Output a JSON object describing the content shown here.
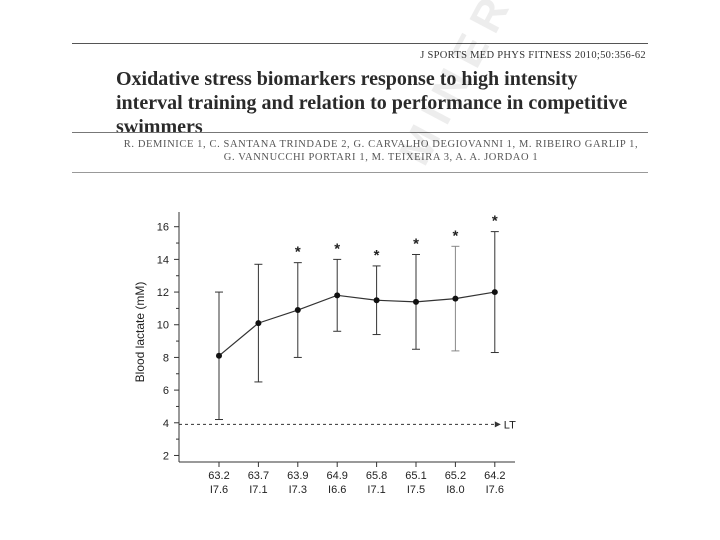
{
  "header": {
    "journal_ref": "J SPORTS MED PHYS FITNESS 2010;50:356-62",
    "title": "Oxidative stress biomarkers response to high intensity interval training and relation to performance in competitive swimmers",
    "authors_line1": "R. DEMINICE 1, C. SANTANA TRINDADE 2, G. CARVALHO DEGIOVANNI 1, M. RIBEIRO GARLIP 1,",
    "authors_line2": "G. VANNUCCHI PORTARI 1, M. TEIXEIRA 3, A. A. JORDAO 1"
  },
  "chart_data": {
    "type": "line",
    "ylabel": "Blood lactate (mM)",
    "ylim": [
      2,
      17
    ],
    "yticks": [
      2,
      4,
      6,
      8,
      10,
      12,
      14,
      16
    ],
    "categories_line1": [
      "63.2",
      "63.7",
      "63.9",
      "64.9",
      "65.8",
      "65.1",
      "65.2",
      "64.2"
    ],
    "categories_line2": [
      "I7.6",
      "I7.1",
      "I7.3",
      "I6.6",
      "I7.1",
      "I7.5",
      "I8.0",
      "I7.6"
    ],
    "values": [
      8.1,
      10.1,
      10.9,
      11.8,
      11.5,
      11.4,
      11.6,
      12.0
    ],
    "errors": [
      3.9,
      3.6,
      2.9,
      2.2,
      2.1,
      2.9,
      3.2,
      3.7
    ],
    "significant": [
      false,
      false,
      true,
      true,
      true,
      true,
      true,
      true
    ],
    "significance_marker": "*",
    "reference_line": {
      "value": 3.9,
      "label": "LT"
    }
  }
}
